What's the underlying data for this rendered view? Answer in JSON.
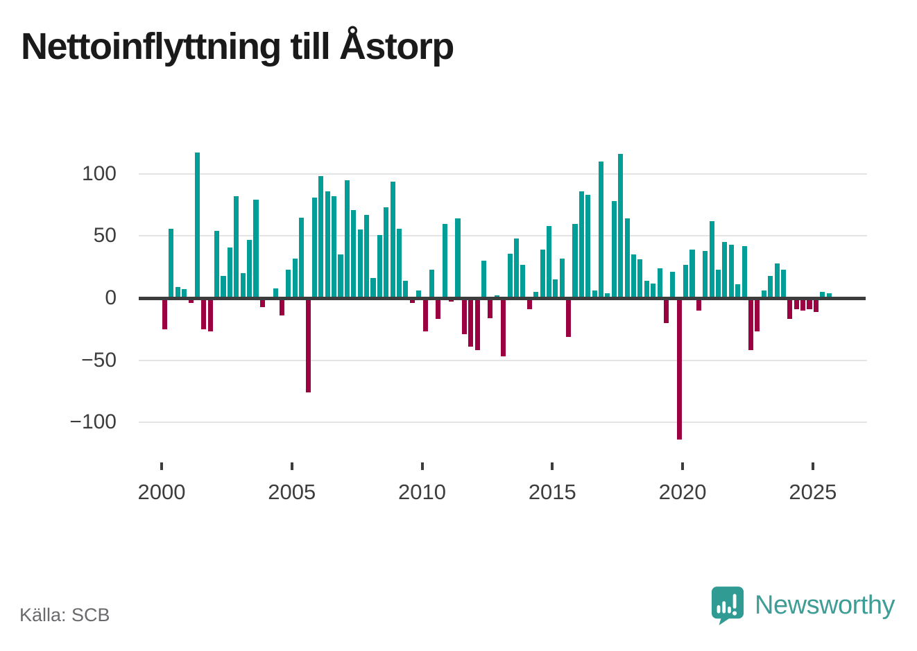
{
  "header": {
    "title": "Nettoinflyttning till Åstorp"
  },
  "footer": {
    "source": "Källa: SCB",
    "brand": "Newsworthy",
    "brand_icon": "speech-bubble-bar-chart"
  },
  "chart_data": {
    "type": "bar",
    "title": "Nettoinflyttning till Åstorp",
    "frequency": "quarterly",
    "period_start": "2000-Q1",
    "period_end": "2025-Q3",
    "values": [
      -25,
      56,
      9,
      7,
      -4,
      117,
      -25,
      -27,
      54,
      18,
      41,
      82,
      20,
      47,
      79,
      -7,
      0,
      8,
      -14,
      23,
      32,
      65,
      -76,
      81,
      98,
      86,
      82,
      35,
      95,
      71,
      55,
      67,
      16,
      51,
      73,
      94,
      56,
      14,
      -4,
      6,
      -27,
      23,
      -17,
      60,
      -3,
      64,
      -29,
      -39,
      -42,
      30,
      -16,
      2,
      -47,
      36,
      48,
      27,
      -9,
      5,
      39,
      58,
      15,
      32,
      -31,
      60,
      86,
      83,
      6,
      110,
      4,
      78,
      116,
      64,
      35,
      31,
      14,
      12,
      24,
      -20,
      21,
      -114,
      27,
      39,
      -10,
      38,
      62,
      23,
      45,
      43,
      11,
      42,
      -42,
      -27,
      6,
      18,
      28,
      23,
      -17,
      -9,
      -10,
      -9,
      -11,
      5,
      4
    ],
    "ylim": [
      -120,
      120
    ],
    "ytick_values": [
      100,
      50,
      0,
      -50,
      -100
    ],
    "ytick_labels": [
      "100",
      "50",
      "0",
      "−50",
      "−100"
    ],
    "grid_values": [
      100,
      50,
      -50,
      -100
    ],
    "x_ticks": [
      {
        "label": "2000",
        "index": 0
      },
      {
        "label": "2005",
        "index": 20
      },
      {
        "label": "2010",
        "index": 40
      },
      {
        "label": "2015",
        "index": 60
      },
      {
        "label": "2020",
        "index": 80
      },
      {
        "label": "2025",
        "index": 100
      }
    ],
    "grid": true,
    "legend": null,
    "colors": {
      "positive": "#009e96",
      "negative": "#9b0040",
      "axis": "#3d3d3d",
      "grid": "#e4e4e4",
      "tick_text": "#3d3d3d",
      "title_text": "#1a1a1a",
      "source_text": "#6a6a6e",
      "brand_teal": "#3f9d96"
    }
  }
}
